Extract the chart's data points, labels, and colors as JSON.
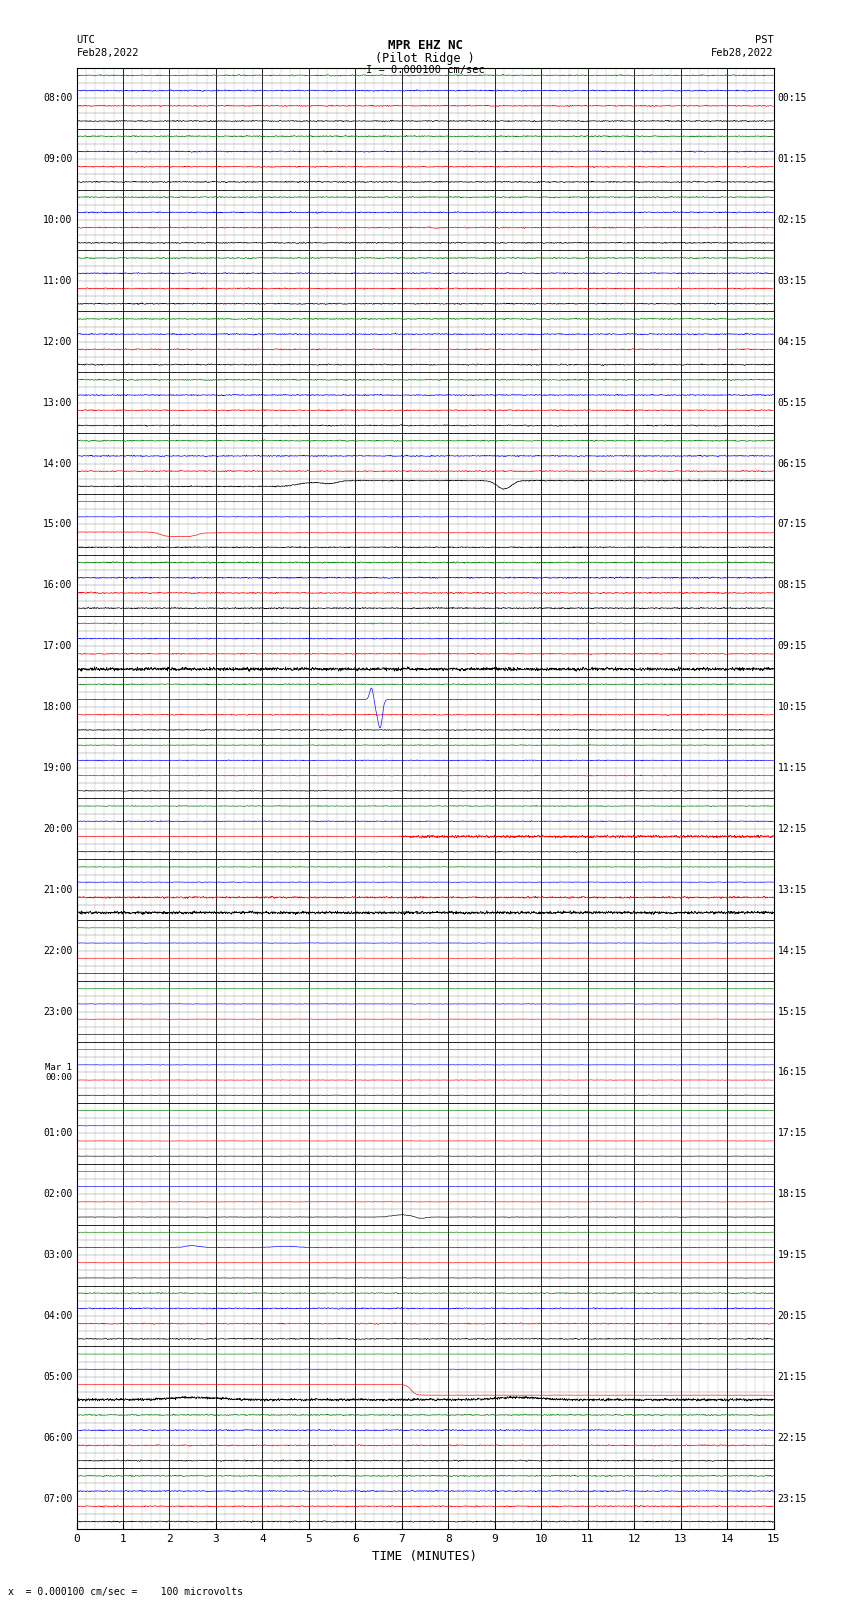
{
  "title_line1": "MPR EHZ NC",
  "title_line2": "(Pilot Ridge )",
  "title_line3": "I = 0.000100 cm/sec",
  "left_header_line1": "UTC",
  "left_header_line2": "Feb28,2022",
  "right_header_line1": "PST",
  "right_header_line2": "Feb28,2022",
  "bottom_label": "TIME (MINUTES)",
  "bottom_note": "x  = 0.000100 cm/sec =    100 microvolts",
  "utc_labels": [
    "08:00",
    "09:00",
    "10:00",
    "11:00",
    "12:00",
    "13:00",
    "14:00",
    "15:00",
    "16:00",
    "17:00",
    "18:00",
    "19:00",
    "20:00",
    "21:00",
    "22:00",
    "23:00",
    "Mar 1\n00:00",
    "01:00",
    "02:00",
    "03:00",
    "04:00",
    "05:00",
    "06:00",
    "07:00"
  ],
  "pst_labels": [
    "00:15",
    "01:15",
    "02:15",
    "03:15",
    "04:15",
    "05:15",
    "06:15",
    "07:15",
    "08:15",
    "09:15",
    "10:15",
    "11:15",
    "12:15",
    "13:15",
    "14:15",
    "15:15",
    "16:15",
    "17:15",
    "18:15",
    "19:15",
    "20:15",
    "21:15",
    "22:15",
    "23:15"
  ],
  "n_rows": 24,
  "sub_traces": 4,
  "x_min": 0,
  "x_max": 15,
  "x_ticks": [
    0,
    1,
    2,
    3,
    4,
    5,
    6,
    7,
    8,
    9,
    10,
    11,
    12,
    13,
    14,
    15
  ],
  "bg_color": "#ffffff",
  "trace_colors": [
    "#000000",
    "#ff0000",
    "#0000ff",
    "#008000"
  ],
  "fig_width": 8.5,
  "fig_height": 16.13,
  "dpi": 100
}
